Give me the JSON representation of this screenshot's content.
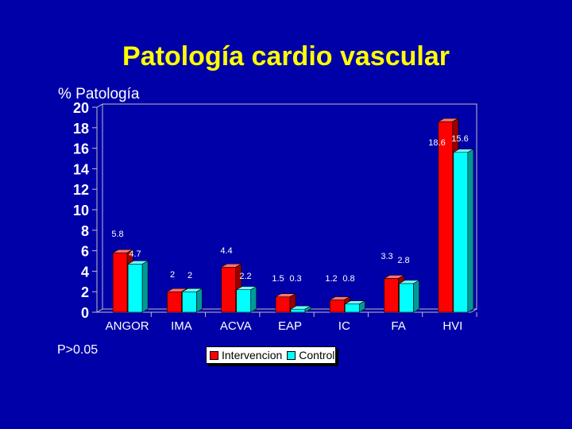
{
  "chart_data": {
    "type": "bar",
    "title": "Patología cardio vascular",
    "ylabel": "% Patología",
    "xlabel": "",
    "ylim": [
      0,
      20
    ],
    "yticks": [
      0,
      2,
      4,
      6,
      8,
      10,
      12,
      14,
      16,
      18,
      20
    ],
    "categories": [
      "ANGOR",
      "IMA",
      "ACVA",
      "EAP",
      "IC",
      "FA",
      "HVI"
    ],
    "series": [
      {
        "name": "Intervencion",
        "color": "#ff0000",
        "values": [
          5.8,
          2,
          4.4,
          1.5,
          1.2,
          3.3,
          18.6
        ]
      },
      {
        "name": "Control",
        "color": "#00ffff",
        "values": [
          4.7,
          2,
          2.2,
          0.3,
          0.8,
          2.8,
          15.6
        ]
      }
    ],
    "data_labels": [
      [
        "5.8",
        "2",
        "4.4",
        "1.5",
        "1.2",
        "3.3",
        "18.6"
      ],
      [
        "4.7",
        "2",
        "2.2",
        "0.3",
        "0.8",
        "2.8",
        "15.6"
      ]
    ],
    "grid": false,
    "legend_position": "bottom-center"
  },
  "note": "P>0.05"
}
